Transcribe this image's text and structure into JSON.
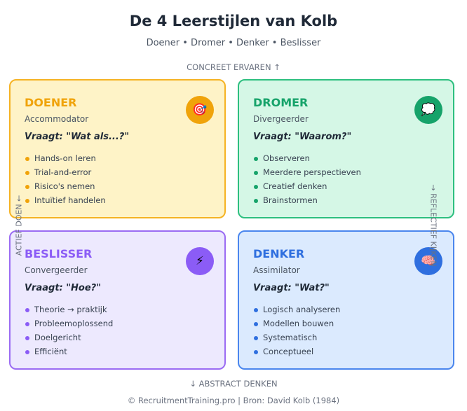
{
  "header": {
    "title": "De 4 Leerstijlen van Kolb",
    "subtitle": "Doener • Dromer • Denker • Beslisser"
  },
  "axes": {
    "top": "CONCREET ERVAREN ↑",
    "bottom": "↓ ABSTRACT DENKEN",
    "left": "ACTIEF DOEN ←",
    "right": "→ REFLECTIEF KIJKEN"
  },
  "quadrants": [
    {
      "title": "DOENER",
      "subtitle": "Accommodator",
      "question": "Vraagt: \"Wat als...?\"",
      "icon": "🎯",
      "color": "#f0a30a",
      "border": "#f5b324",
      "background": "#fef3c7",
      "items": [
        "Hands-on leren",
        "Trial-and-error",
        "Risico's nemen",
        "Intuïtief handelen"
      ]
    },
    {
      "title": "DROMER",
      "subtitle": "Divergeerder",
      "question": "Vraagt: \"Waarom?\"",
      "icon": "💭",
      "color": "#16a36a",
      "border": "#2dbf7f",
      "background": "#d5f7e6",
      "items": [
        "Observeren",
        "Meerdere perspectieven",
        "Creatief denken",
        "Brainstormen"
      ]
    },
    {
      "title": "BESLISSER",
      "subtitle": "Convergeerder",
      "question": "Vraagt: \"Hoe?\"",
      "icon": "⚡",
      "color": "#8b5cf6",
      "border": "#9b6cf3",
      "background": "#ede9fe",
      "items": [
        "Theorie → praktijk",
        "Probleemoplossend",
        "Doelgericht",
        "Efficiënt"
      ]
    },
    {
      "title": "DENKER",
      "subtitle": "Assimilator",
      "question": "Vraagt: \"Wat?\"",
      "icon": "🧠",
      "color": "#2f6fdf",
      "border": "#4a86ee",
      "background": "#dbeafe",
      "items": [
        "Logisch analyseren",
        "Modellen bouwen",
        "Systematisch",
        "Conceptueel"
      ]
    }
  ],
  "footer": "© RecruitmentTraining.pro | Bron: David Kolb (1984)"
}
